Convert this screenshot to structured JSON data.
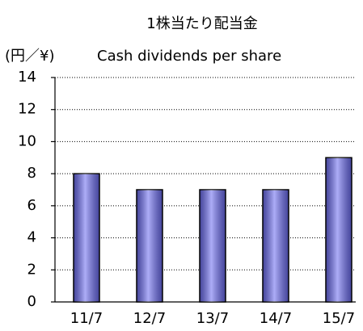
{
  "chart_data": {
    "type": "bar",
    "title": "1株当たり配当金",
    "unit": "(円／¥)",
    "y_label": "Cash dividends per share",
    "categories": [
      "11/7",
      "12/7",
      "13/7",
      "14/7",
      "15/7"
    ],
    "values": [
      8,
      7,
      7,
      7,
      9
    ],
    "color": "#6a6af0",
    "ylim": [
      0,
      14
    ],
    "yticks": [
      0,
      2,
      4,
      6,
      8,
      10,
      12,
      14
    ],
    "grid": true
  }
}
